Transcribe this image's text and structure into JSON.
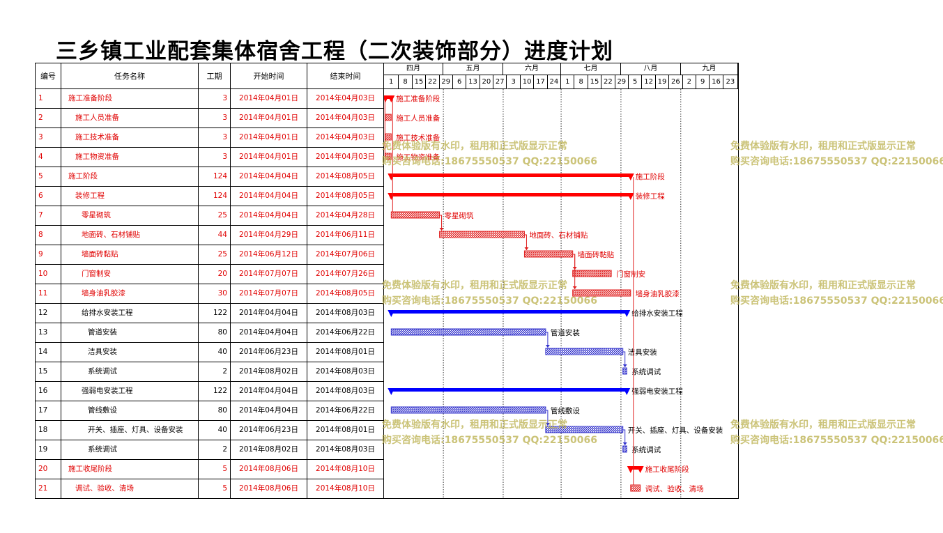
{
  "title": "三乡镇工业配套集体宿舍工程（二次装饰部分）进度计划",
  "headers": {
    "id": "编号",
    "name": "任务名称",
    "duration": "工期",
    "start": "开始时间",
    "end": "结束时间"
  },
  "months": [
    "四月",
    "五月",
    "六月",
    "七月",
    "八月",
    "九月"
  ],
  "week_ticks": [
    "1",
    "8",
    "15",
    "22",
    "29",
    "6",
    "13",
    "20",
    "27",
    "3",
    "10",
    "17",
    "24",
    "1",
    "8",
    "15",
    "22",
    "29",
    "5",
    "12",
    "19",
    "26",
    "2",
    "9",
    "16",
    "23"
  ],
  "watermark": {
    "line1": "免费体验版有水印，租用和正式版显示正常",
    "line2": "购买咨询电话:18675550537 QQ:22150066"
  },
  "colors": {
    "summary_red": "#ff0000",
    "summary_blue": "#0000ff",
    "task_red": "#e02020",
    "task_blue": "#3333cc",
    "text_red": "#e00000"
  },
  "tasks": [
    {
      "id": "1",
      "name": "施工准备阶段",
      "duration": "3",
      "start": "2014年04月01日",
      "end": "2014年04月03日",
      "indent": 0,
      "color": "red",
      "type": "summary",
      "start_day": 0,
      "end_day": 3
    },
    {
      "id": "2",
      "name": "施工人员准备",
      "duration": "3",
      "start": "2014年04月01日",
      "end": "2014年04月03日",
      "indent": 1,
      "color": "red",
      "type": "task",
      "start_day": 0,
      "end_day": 3
    },
    {
      "id": "3",
      "name": "施工技术准备",
      "duration": "3",
      "start": "2014年04月01日",
      "end": "2014年04月03日",
      "indent": 1,
      "color": "red",
      "type": "task",
      "start_day": 0,
      "end_day": 3
    },
    {
      "id": "4",
      "name": "施工物资准备",
      "duration": "3",
      "start": "2014年04月01日",
      "end": "2014年04月03日",
      "indent": 1,
      "color": "red",
      "type": "task",
      "start_day": 0,
      "end_day": 3
    },
    {
      "id": "5",
      "name": "施工阶段",
      "duration": "124",
      "start": "2014年04月04日",
      "end": "2014年08月05日",
      "indent": 0,
      "color": "red",
      "type": "summary",
      "start_day": 3,
      "end_day": 127
    },
    {
      "id": "6",
      "name": "装修工程",
      "duration": "124",
      "start": "2014年04月04日",
      "end": "2014年08月05日",
      "indent": 1,
      "color": "red",
      "type": "summary",
      "start_day": 3,
      "end_day": 127
    },
    {
      "id": "7",
      "name": "零星砌筑",
      "duration": "25",
      "start": "2014年04月04日",
      "end": "2014年04月28日",
      "indent": 2,
      "color": "red",
      "type": "task",
      "start_day": 3,
      "end_day": 28
    },
    {
      "id": "8",
      "name": "地面砖、石材铺贴",
      "duration": "44",
      "start": "2014年04月29日",
      "end": "2014年06月11日",
      "indent": 2,
      "color": "red",
      "type": "task",
      "start_day": 28,
      "end_day": 72
    },
    {
      "id": "9",
      "name": "墙面砖黏贴",
      "duration": "25",
      "start": "2014年06月12日",
      "end": "2014年07月06日",
      "indent": 2,
      "color": "red",
      "type": "task",
      "start_day": 72,
      "end_day": 97
    },
    {
      "id": "10",
      "name": "门窗制安",
      "duration": "20",
      "start": "2014年07月07日",
      "end": "2014年07月26日",
      "indent": 2,
      "color": "red",
      "type": "task",
      "start_day": 97,
      "end_day": 117
    },
    {
      "id": "11",
      "name": "墙身油乳胶漆",
      "duration": "30",
      "start": "2014年07月07日",
      "end": "2014年08月05日",
      "indent": 2,
      "color": "red",
      "type": "task",
      "start_day": 97,
      "end_day": 127
    },
    {
      "id": "12",
      "name": "给排水安装工程",
      "duration": "122",
      "start": "2014年04月04日",
      "end": "2014年08月03日",
      "indent": 2,
      "color": "black",
      "type": "summary",
      "start_day": 3,
      "end_day": 125
    },
    {
      "id": "13",
      "name": "管道安装",
      "duration": "80",
      "start": "2014年04月04日",
      "end": "2014年06月22日",
      "indent": 3,
      "color": "black",
      "type": "task",
      "start_day": 3,
      "end_day": 83
    },
    {
      "id": "14",
      "name": "洁具安装",
      "duration": "40",
      "start": "2014年06月23日",
      "end": "2014年08月01日",
      "indent": 3,
      "color": "black",
      "type": "task",
      "start_day": 83,
      "end_day": 123
    },
    {
      "id": "15",
      "name": "系统调试",
      "duration": "2",
      "start": "2014年08月02日",
      "end": "2014年08月03日",
      "indent": 3,
      "color": "black",
      "type": "task",
      "start_day": 123,
      "end_day": 125
    },
    {
      "id": "16",
      "name": "强弱电安装工程",
      "duration": "122",
      "start": "2014年04月04日",
      "end": "2014年08月03日",
      "indent": 2,
      "color": "black",
      "type": "summary",
      "start_day": 3,
      "end_day": 125
    },
    {
      "id": "17",
      "name": "管线敷设",
      "duration": "80",
      "start": "2014年04月04日",
      "end": "2014年06月22日",
      "indent": 3,
      "color": "black",
      "type": "task",
      "start_day": 3,
      "end_day": 83
    },
    {
      "id": "18",
      "name": "开关、插座、灯具、设备安装",
      "duration": "40",
      "start": "2014年06月23日",
      "end": "2014年08月01日",
      "indent": 3,
      "color": "black",
      "type": "task",
      "start_day": 83,
      "end_day": 123
    },
    {
      "id": "19",
      "name": "系统调试",
      "duration": "2",
      "start": "2014年08月02日",
      "end": "2014年08月03日",
      "indent": 3,
      "color": "black",
      "type": "task",
      "start_day": 123,
      "end_day": 125
    },
    {
      "id": "20",
      "name": "施工收尾阶段",
      "duration": "5",
      "start": "2014年08月06日",
      "end": "2014年08月10日",
      "indent": 0,
      "color": "red",
      "type": "summary",
      "start_day": 127,
      "end_day": 132
    },
    {
      "id": "21",
      "name": "调试、验收、清场",
      "duration": "5",
      "start": "2014年08月06日",
      "end": "2014年08月10日",
      "indent": 1,
      "color": "red",
      "type": "task",
      "start_day": 127,
      "end_day": 132
    }
  ]
}
